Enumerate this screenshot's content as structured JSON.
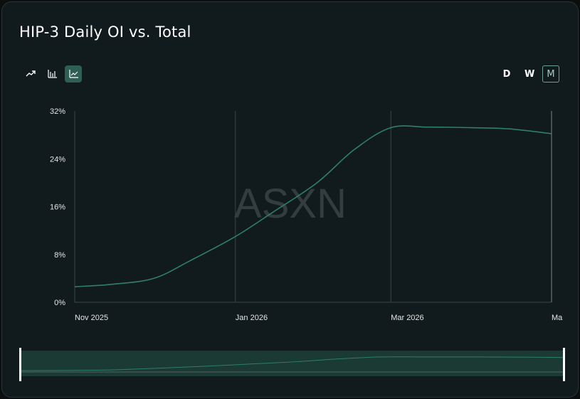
{
  "header": {
    "title": "HIP-3 Daily OI vs. Total"
  },
  "toolbar": {
    "chart_types": [
      {
        "icon": "trend-line-icon",
        "active": false
      },
      {
        "icon": "bar-chart-icon",
        "active": false
      },
      {
        "icon": "line-chart-icon",
        "active": true
      }
    ],
    "ranges": [
      {
        "label": "D",
        "active": false
      },
      {
        "label": "W",
        "active": false
      },
      {
        "label": "M",
        "active": true
      }
    ]
  },
  "watermark": "ASXN",
  "colors": {
    "line": "#2f7f6a",
    "grid": "#3a4447",
    "axis_text": "#e6e6e6",
    "active_button": "#2f5e55"
  },
  "chart_data": {
    "type": "line",
    "title": "HIP-3 Daily OI vs. Total",
    "xlabel": "",
    "ylabel": "",
    "x_ticks": [
      "Nov 2025",
      "Jan 2026",
      "Mar 2026",
      "Ma"
    ],
    "y_ticks": [
      "0%",
      "8%",
      "16%",
      "24%",
      "32%"
    ],
    "ylim": [
      0,
      32
    ],
    "xlim": [
      "2025-11-01",
      "2026-05-01"
    ],
    "grid": "vertical",
    "series": [
      {
        "x": [
          "2025-11-01",
          "2025-11-15",
          "2025-12-01",
          "2025-12-15",
          "2026-01-01",
          "2026-01-15",
          "2026-02-01",
          "2026-02-15",
          "2026-03-01",
          "2026-03-15",
          "2026-04-01",
          "2026-04-15",
          "2026-05-01"
        ],
        "values": [
          2.6,
          3.0,
          4.0,
          7.0,
          11.0,
          15.0,
          20.0,
          25.5,
          29.2,
          29.3,
          29.2,
          29.0,
          28.2
        ]
      }
    ],
    "navigator": {
      "start": "2025-11-01",
      "end": "2026-05-01"
    }
  }
}
